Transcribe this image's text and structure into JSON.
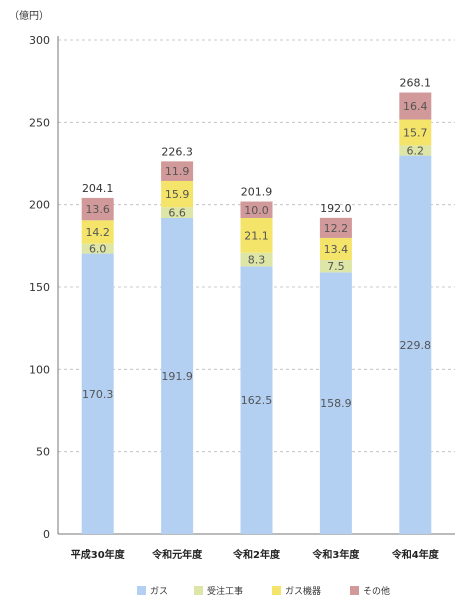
{
  "chart_data": {
    "type": "bar",
    "stacked": true,
    "unit_label": "（億円）",
    "ylim": [
      0,
      300
    ],
    "yticks": [
      "0",
      "50",
      "100",
      "150",
      "200",
      "250",
      "300"
    ],
    "ytick_values": [
      0,
      50,
      100,
      150,
      200,
      250,
      300
    ],
    "grid": true,
    "legend_position": "bottom",
    "categories": [
      "平成30年度",
      "令和元年度",
      "令和2年度",
      "令和3年度",
      "令和4年度"
    ],
    "series": [
      {
        "name": "ガス",
        "color": "#b3d0f2",
        "values": [
          170.3,
          191.9,
          162.5,
          158.9,
          229.8
        ],
        "labels": [
          "170.3",
          "191.9",
          "162.5",
          "158.9",
          "229.8"
        ]
      },
      {
        "name": "受注工事",
        "color": "#dde6a6",
        "values": [
          6.0,
          6.6,
          8.3,
          7.5,
          6.2
        ],
        "labels": [
          "6.0",
          "6.6",
          "8.3",
          "7.5",
          "6.2"
        ]
      },
      {
        "name": "ガス機器",
        "color": "#f5e46a",
        "values": [
          14.2,
          15.9,
          21.1,
          13.4,
          15.7
        ],
        "labels": [
          "14.2",
          "15.9",
          "21.1",
          "13.4",
          "15.7"
        ]
      },
      {
        "name": "その他",
        "color": "#d19999",
        "values": [
          13.6,
          11.9,
          10.0,
          12.2,
          16.4
        ],
        "labels": [
          "13.6",
          "11.9",
          "10.0",
          "12.2",
          "16.4"
        ]
      }
    ],
    "totals": [
      "204.1",
      "226.3",
      "201.9",
      "192.0",
      "268.1"
    ]
  }
}
